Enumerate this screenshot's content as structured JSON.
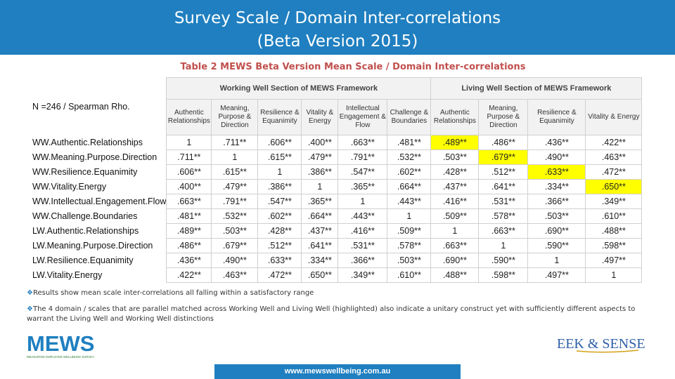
{
  "header": {
    "title_line1": "Survey Scale / Domain Inter-correlations",
    "title_line2": "(Beta Version 2015)"
  },
  "table": {
    "caption": "Table 2 MEWS Beta Version Mean Scale / Domain Inter-correlations",
    "n_label": "N =246 / Spearman Rho.",
    "section_working": "Working Well Section of MEWS Framework",
    "section_living": "Living Well Section of MEWS Framework",
    "columns": [
      "Authentic Relationships",
      "Meaning, Purpose & Direction",
      "Resilience & Equanimity",
      "Vitality & Energy",
      "Intellectual Engagement & Flow",
      "Challenge & Boundaries",
      "Authentic Relationships",
      "Meaning, Purpose & Direction",
      "Resilience & Equanimity",
      "Vitality & Energy"
    ],
    "rows": [
      {
        "label": "WW.Authentic.Relationships",
        "values": [
          "1",
          ".711**",
          ".606**",
          ".400**",
          ".663**",
          ".481**",
          ".489**",
          ".486**",
          ".436**",
          ".422**"
        ],
        "highlight": [
          6
        ]
      },
      {
        "label": "WW.Meaning.Purpose.Direction",
        "values": [
          ".711**",
          "1",
          ".615**",
          ".479**",
          ".791**",
          ".532**",
          ".503**",
          ".679**",
          ".490**",
          ".463**"
        ],
        "highlight": [
          7
        ]
      },
      {
        "label": "WW.Resilience.Equanimity",
        "values": [
          ".606**",
          ".615**",
          "1",
          ".386**",
          ".547**",
          ".602**",
          ".428**",
          ".512**",
          ".633**",
          ".472**"
        ],
        "highlight": [
          8
        ]
      },
      {
        "label": "WW.Vitality.Energy",
        "values": [
          ".400**",
          ".479**",
          ".386**",
          "1",
          ".365**",
          ".664**",
          ".437**",
          ".641**",
          ".334**",
          ".650**"
        ],
        "highlight": [
          9
        ]
      },
      {
        "label": "WW.Intellectual.Engagement.Flow",
        "values": [
          ".663**",
          ".791**",
          ".547**",
          ".365**",
          "1",
          ".443**",
          ".416**",
          ".531**",
          ".366**",
          ".349**"
        ],
        "highlight": []
      },
      {
        "label": "WW.Challenge.Boundaries",
        "values": [
          ".481**",
          ".532**",
          ".602**",
          ".664**",
          ".443**",
          "1",
          ".509**",
          ".578**",
          ".503**",
          ".610**"
        ],
        "highlight": []
      },
      {
        "label": "LW.Authentic.Relationships",
        "values": [
          ".489**",
          ".503**",
          ".428**",
          ".437**",
          ".416**",
          ".509**",
          "1",
          ".663**",
          ".690**",
          ".488**"
        ],
        "highlight": []
      },
      {
        "label": "LW.Meaning.Purpose.Direction",
        "values": [
          ".486**",
          ".679**",
          ".512**",
          ".641**",
          ".531**",
          ".578**",
          ".663**",
          "1",
          ".590**",
          ".598**"
        ],
        "highlight": []
      },
      {
        "label": "LW.Resilience.Equanimity",
        "values": [
          ".436**",
          ".490**",
          ".633**",
          ".334**",
          ".366**",
          ".503**",
          ".690**",
          ".590**",
          "1",
          ".497**"
        ],
        "highlight": []
      },
      {
        "label": "LW.Vitality.Energy",
        "values": [
          ".422**",
          ".463**",
          ".472**",
          ".650**",
          ".349**",
          ".610**",
          ".488**",
          ".598**",
          ".497**",
          "1"
        ],
        "highlight": []
      }
    ]
  },
  "bullets": [
    "Results show mean scale inter-correlations all falling within a satisfactory range",
    "The 4 domain / scales that are parallel matched across Working Well and Living Well (highlighted) also indicate a unitary construct yet with sufficiently different aspects to warrant the Living Well and Working Well distinctions"
  ],
  "logos": {
    "mews_text": "MEWS",
    "mews_tagline": "MEASURING EMPLOYEE WELLBEING SURVEY",
    "eek_text": "EEK & SENSE"
  },
  "footer": {
    "url": "www.mewswellbeing.com.au"
  },
  "colors": {
    "header_blue": "#1f7fc0",
    "highlight": "#ffff00",
    "caption_red": "#c0504d",
    "eek_blue": "#2e5fa8",
    "eek_gold": "#d4a017"
  }
}
